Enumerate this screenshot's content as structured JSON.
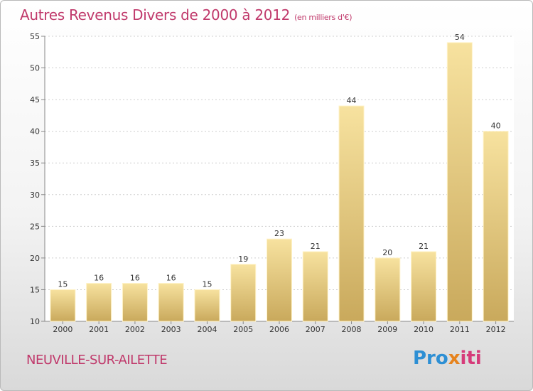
{
  "title": {
    "main": "Autres Revenus Divers de 2000 à 2012",
    "unit": "(en milliers d'€)"
  },
  "location": "NEUVILLE-SUR-AILETTE",
  "logo": {
    "p1": "Pro",
    "p2": "x",
    "p3": "iti"
  },
  "colors": {
    "title": "#c0396b",
    "bar_light": "#f7e29f",
    "bar_dark": "#c9a95c"
  },
  "chart_data": {
    "type": "bar",
    "categories": [
      "2000",
      "2001",
      "2002",
      "2003",
      "2004",
      "2005",
      "2006",
      "2007",
      "2008",
      "2009",
      "2010",
      "2011",
      "2012"
    ],
    "values": [
      15,
      16,
      16,
      16,
      15,
      19,
      23,
      21,
      44,
      20,
      21,
      54,
      40
    ],
    "ylim": [
      10,
      55
    ],
    "yticks": [
      10,
      15,
      20,
      25,
      30,
      35,
      40,
      45,
      50,
      55
    ],
    "grid": true,
    "xlabel": "",
    "ylabel": ""
  }
}
